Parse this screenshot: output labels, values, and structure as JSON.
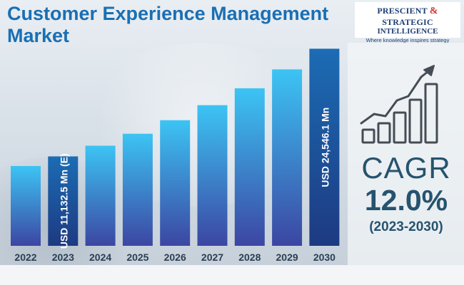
{
  "header": {
    "title_line1": "Customer Experience Management",
    "title_line2": "Market"
  },
  "logo": {
    "line1_a": "PRESCIENT",
    "line1_amp": "&",
    "line1_b": "STRATEGIC",
    "line2": "INTELLIGENCE",
    "tagline": "Where knowledge inspires strategy"
  },
  "cagr": {
    "label": "CAGR",
    "value": "12.0%",
    "period": "(2023-2030)"
  },
  "colors": {
    "bar_top": "#3cc4f4",
    "bar_bottom": "#3c46a2",
    "bar_highlight_top": "#1c6cb4",
    "bar_highlight_bottom": "#1d3a82",
    "title": "#1a6fb3",
    "cagr_text": "#26536e",
    "year_text": "#2b3f52"
  },
  "chart_data": {
    "type": "bar",
    "categories": [
      "2022",
      "2023",
      "2024",
      "2025",
      "2026",
      "2027",
      "2028",
      "2029",
      "2030"
    ],
    "values": [
      9940,
      11132.5,
      12470,
      13960,
      15640,
      17520,
      19620,
      21970,
      24546.1
    ],
    "highlighted": [
      "2023",
      "2030"
    ],
    "data_labels": [
      {
        "category": "2023",
        "text": "USD 11,132.5 Mn (E)"
      },
      {
        "category": "2030",
        "text": "USD 24,546.1 Mn"
      }
    ],
    "title": "Customer Experience Management Market",
    "xlabel": "",
    "ylabel": "",
    "ylim": [
      0,
      26000
    ],
    "grid": false,
    "legend": "none"
  }
}
